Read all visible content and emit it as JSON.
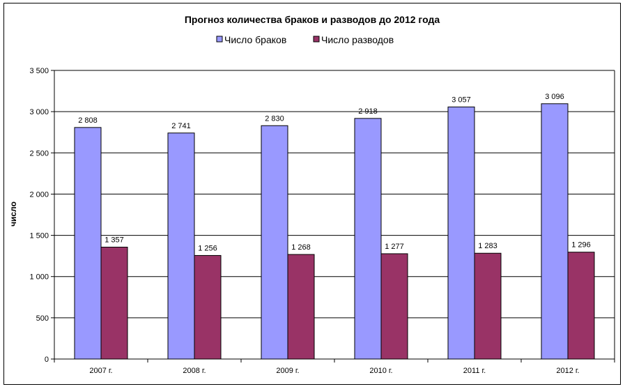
{
  "chart_data": {
    "type": "bar",
    "title": "Прогноз количества браков и разводов до 2012 года",
    "xlabel": "",
    "ylabel": "число",
    "categories": [
      "2007 г.",
      "2008 г.",
      "2009 г.",
      "2010 г.",
      "2011 г.",
      "2012 г."
    ],
    "series": [
      {
        "name": "Число браков",
        "color": "#9999ff",
        "values": [
          2808,
          2741,
          2830,
          2918,
          3057,
          3096
        ],
        "labels": [
          "2 808",
          "2 741",
          "2 830",
          "2 918",
          "3 057",
          "3 096"
        ]
      },
      {
        "name": "Число разводов",
        "color": "#993366",
        "values": [
          1357,
          1256,
          1268,
          1277,
          1283,
          1296
        ],
        "labels": [
          "1 357",
          "1 256",
          "1 268",
          "1 277",
          "1 283",
          "1 296"
        ]
      }
    ],
    "ylim": [
      0,
      3500
    ],
    "yticks": [
      0,
      500,
      1000,
      1500,
      2000,
      2500,
      3000,
      3500
    ],
    "ytick_labels": [
      "0",
      "500",
      "1 000",
      "1 500",
      "2 000",
      "2 500",
      "3 000",
      "3 500"
    ],
    "grid": true,
    "legend": "top"
  }
}
